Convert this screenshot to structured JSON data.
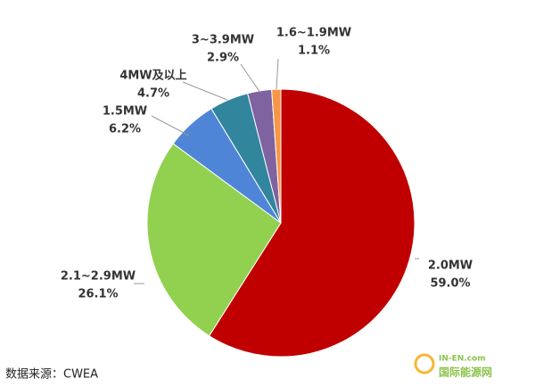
{
  "chart_data": {
    "type": "pie",
    "categories": [
      "2.0MW",
      "2.1~2.9MW",
      "1.5MW",
      "4MW及以上",
      "3~3.9MW",
      "1.6~1.9MW"
    ],
    "values": [
      59.0,
      26.1,
      6.2,
      4.7,
      2.9,
      1.1
    ],
    "value_labels": [
      "59.0%",
      "26.1%",
      "6.2%",
      "4.7%",
      "2.9%",
      "1.1%"
    ],
    "colors": [
      "#c00000",
      "#92d050",
      "#4f85d6",
      "#31859c",
      "#7f62a0",
      "#f79646"
    ],
    "source": "数据来源：CWEA"
  },
  "watermark": {
    "site": "IN-EN.com",
    "name": "国际能源网"
  }
}
